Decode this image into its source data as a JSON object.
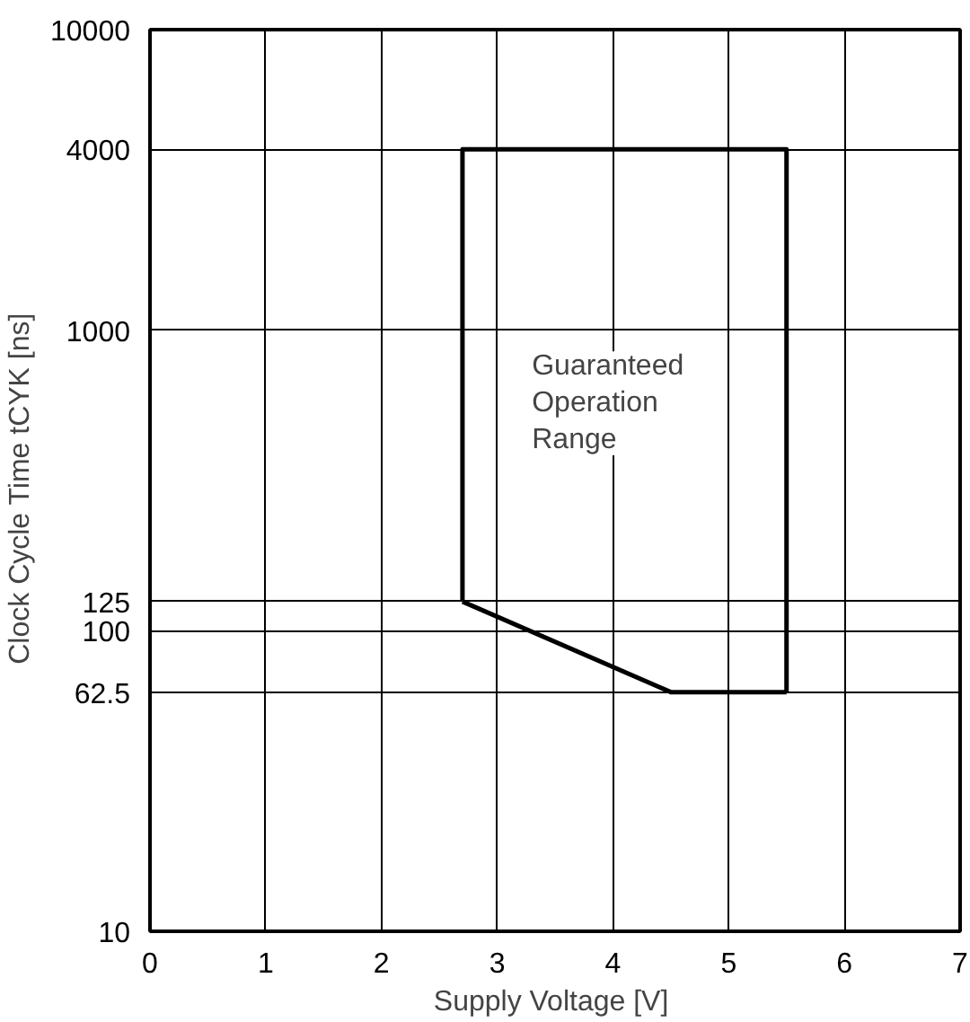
{
  "chart_data": {
    "type": "line",
    "xlabel": "Supply Voltage  [V]",
    "ylabel": "Clock Cycle Time  tCYK  [ns]",
    "series": [
      {
        "color": "#000000",
        "x": [
          2.7,
          2.7,
          5.5,
          5.5
        ],
        "values": [
          125,
          4000,
          4000,
          62.5
        ]
      },
      {
        "color": "#000000",
        "x": [
          2.7,
          4.5,
          5.5
        ],
        "values": [
          125,
          62.5,
          62.5
        ]
      }
    ],
    "xlim": [
      0,
      7
    ],
    "xticks": [
      0,
      1,
      2,
      3,
      4,
      5,
      6,
      7
    ],
    "ylim": [
      10,
      10000
    ],
    "yticks": [
      10,
      62.5,
      100,
      125,
      1000,
      4000,
      10000
    ],
    "log": "y",
    "grid": true,
    "marker": "none",
    "line_style": "solid",
    "annotations": [
      "Guaranteed\nOperation\nRange"
    ]
  }
}
